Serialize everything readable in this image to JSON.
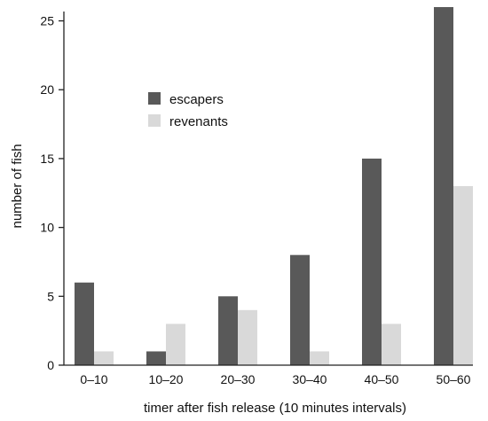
{
  "chart_data": {
    "type": "bar",
    "title": "",
    "xlabel": "timer after fish release (10 minutes intervals)",
    "ylabel": "number of fish",
    "categories": [
      "0–10",
      "10–20",
      "20–30",
      "30–40",
      "40–50",
      "50–60"
    ],
    "series": [
      {
        "name": "escapers",
        "color": "#595959",
        "values": [
          6,
          1,
          5,
          8,
          15,
          26
        ]
      },
      {
        "name": "revenants",
        "color": "#d9d9d9",
        "values": [
          1,
          3,
          4,
          1,
          3,
          13
        ]
      }
    ],
    "ylim": [
      0,
      26
    ],
    "yticks": [
      0,
      5,
      10,
      15,
      20,
      25
    ],
    "grid": false,
    "legend_position": "top-left"
  }
}
